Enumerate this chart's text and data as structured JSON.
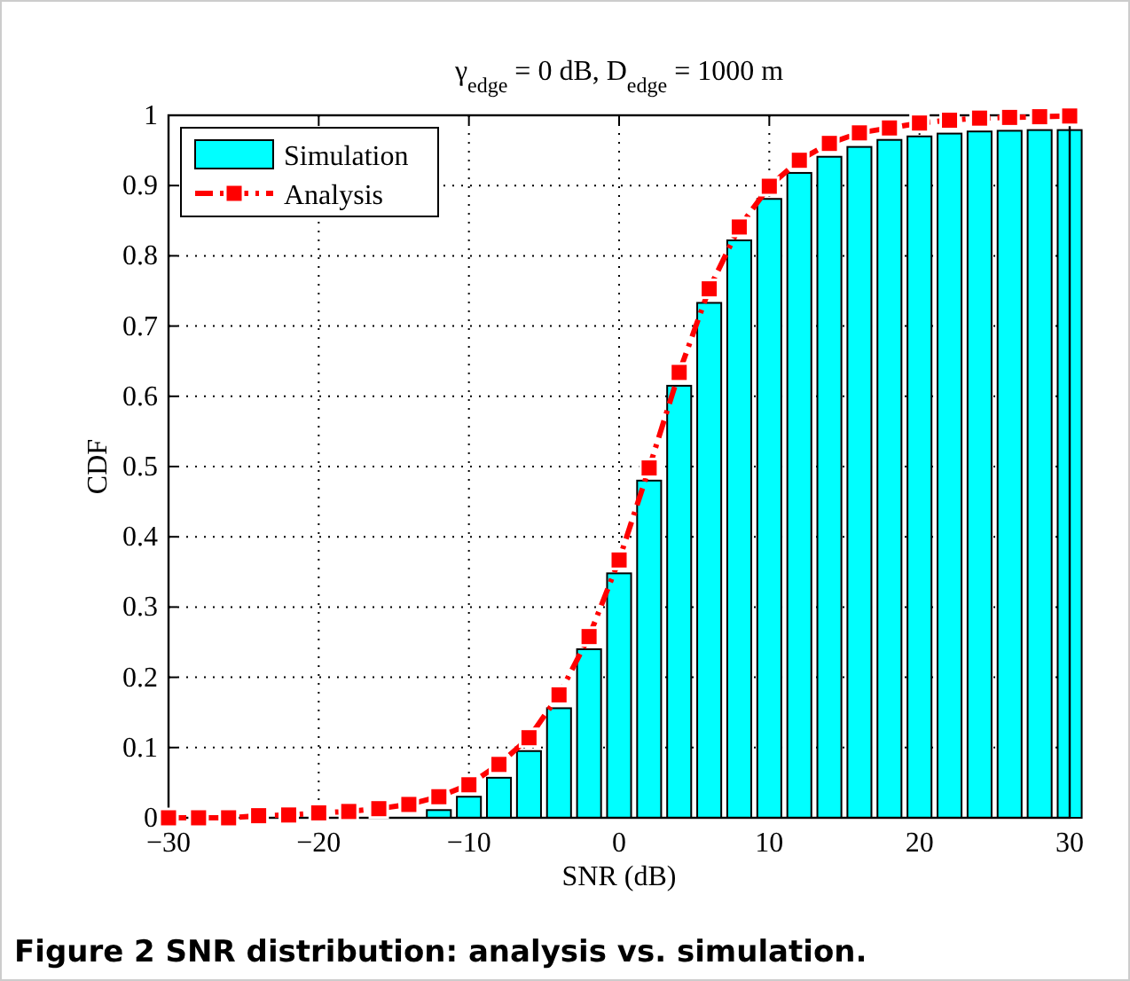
{
  "chart_data": {
    "type": "bar",
    "title": "γ$_{edge}$ = 0 dB, D$_{edge}$ = 1000 m",
    "xlabel": "SNR (dB)",
    "ylabel": "CDF",
    "annotations": [
      "Figure 2 SNR distribution: analysis vs. simulation."
    ],
    "x": [
      -30,
      -28,
      -26,
      -24,
      -22,
      -20,
      -18,
      -16,
      -14,
      -12,
      -10,
      -8,
      -6,
      -4,
      -2,
      0,
      2,
      4,
      6,
      8,
      10,
      12,
      14,
      16,
      18,
      20,
      22,
      24,
      26,
      28,
      30
    ],
    "series": [
      {
        "name": "Simulation",
        "color": "#00ffff",
        "values": [
          0,
          0,
          0,
          0,
          0,
          0,
          0,
          0,
          0,
          0.011,
          0.03,
          0.057,
          0.095,
          0.156,
          0.24,
          0.348,
          0.48,
          0.615,
          0.733,
          0.822,
          0.881,
          0.918,
          0.941,
          0.955,
          0.965,
          0.97,
          0.974,
          0.977,
          0.978,
          0.979,
          0.979
        ]
      },
      {
        "name": "Analysis",
        "type": "line",
        "color": "#ff0000",
        "marker": "square",
        "line_style": "dashed",
        "values": [
          0,
          0,
          0,
          0.003,
          0.004,
          0.007,
          0.009,
          0.013,
          0.019,
          0.03,
          0.047,
          0.076,
          0.114,
          0.175,
          0.258,
          0.367,
          0.498,
          0.634,
          0.753,
          0.841,
          0.899,
          0.936,
          0.96,
          0.975,
          0.982,
          0.989,
          0.993,
          0.996,
          0.997,
          0.998,
          0.999
        ]
      }
    ],
    "xlim": [
      -30,
      30
    ],
    "xticks": [
      {
        "value": -30,
        "label": "−30"
      },
      {
        "value": -20,
        "label": "−20"
      },
      {
        "value": -10,
        "label": "−10"
      },
      0,
      10,
      20,
      30
    ],
    "ylim": [
      0,
      1
    ],
    "yticks": [
      0,
      0.1,
      0.2,
      0.3,
      0.4,
      0.5,
      0.6,
      0.7,
      0.8,
      0.9,
      1
    ],
    "grid": true,
    "legend": "top left"
  }
}
